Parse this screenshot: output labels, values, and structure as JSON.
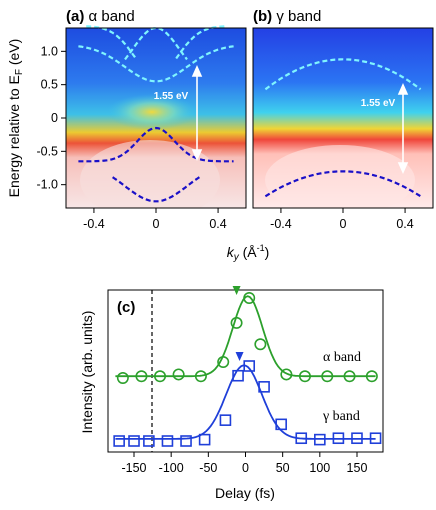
{
  "figure": {
    "panels": [
      {
        "label_bold": "(a)",
        "label_rest": " α band"
      },
      {
        "label_bold": "(b)",
        "label_rest": " γ band"
      }
    ],
    "energy_axis_label": "Energy relative to E",
    "energy_axis_subscript": "F",
    "energy_axis_unit": " (eV)",
    "ky_axis_label": "k",
    "ky_axis_subscript": "y",
    "ky_axis_unit": " (Å",
    "ky_axis_unit_sup": "-1",
    "ky_axis_unit_close": ")",
    "gap_annotation": "1.55 eV",
    "gap_annotation_b": "1.55 eV",
    "panel_c_label": "(c)",
    "colors": {
      "alpha": "#2ca02c",
      "gamma": "#1f3fd9",
      "cyan_band": "#7ff4ff",
      "dark_band": "#1a10c8"
    }
  },
  "chart_data": [
    {
      "type": "heatmap",
      "panel": "a",
      "x_ticks": [
        -0.4,
        0,
        0.4
      ],
      "y_ticks": [
        1.0,
        0.5,
        0,
        -0.5,
        -1.0
      ],
      "xlim": [
        -0.58,
        0.58
      ],
      "ylim": [
        -1.35,
        1.35
      ]
    },
    {
      "type": "heatmap",
      "panel": "b",
      "x_ticks": [
        -0.4,
        0,
        0.4
      ],
      "xlim": [
        -0.58,
        0.58
      ],
      "ylim": [
        -1.35,
        1.35
      ]
    },
    {
      "type": "scatter",
      "panel": "c",
      "xlabel": "Delay (fs)",
      "ylabel": "Intensity (arb. units)",
      "x_ticks": [
        -150,
        -100,
        -50,
        0,
        50,
        100,
        150
      ],
      "xlim": [
        -185,
        185
      ],
      "series": [
        {
          "name": "α band",
          "marker": "circle",
          "color": "#2ca02c",
          "x": [
            -165,
            -140,
            -115,
            -90,
            -60,
            -30,
            -12,
            5,
            20,
            55,
            80,
            110,
            140,
            170
          ],
          "y": [
            0.55,
            0.56,
            0.56,
            0.57,
            0.56,
            0.64,
            0.86,
            1.0,
            0.74,
            0.57,
            0.56,
            0.56,
            0.56,
            0.56
          ]
        },
        {
          "name": "γ band",
          "marker": "square",
          "color": "#1f3fd9",
          "x": [
            -170,
            -150,
            -130,
            -105,
            -80,
            -55,
            -27,
            -10,
            5,
            25,
            48,
            75,
            100,
            125,
            150,
            175
          ],
          "y": [
            0.0,
            0.0,
            0.0,
            0.0,
            0.0,
            0.01,
            0.15,
            0.47,
            0.54,
            0.39,
            0.12,
            0.02,
            0.01,
            0.02,
            0.02,
            0.02
          ]
        }
      ]
    }
  ]
}
